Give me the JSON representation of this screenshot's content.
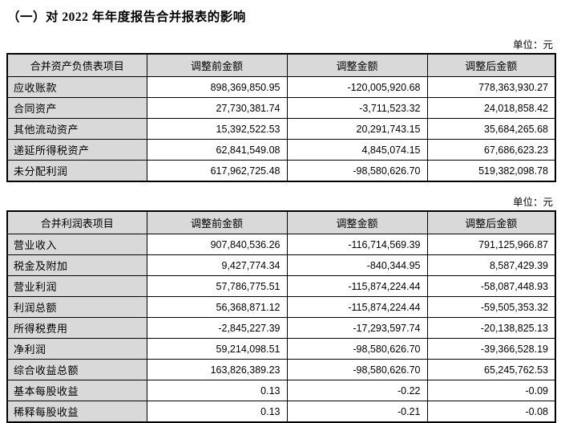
{
  "page": {
    "title": "（一）对 2022 年年度报告合并报表的影响"
  },
  "tables": [
    {
      "unit_label": "单位：元",
      "headers": [
        "合并资产负债表项目",
        "调整前金额",
        "调整金额",
        "调整后金额"
      ],
      "rows": [
        [
          "应收账款",
          "898,369,850.95",
          "-120,005,920.68",
          "778,363,930.27"
        ],
        [
          "合同资产",
          "27,730,381.74",
          "-3,711,523.32",
          "24,018,858.42"
        ],
        [
          "其他流动资产",
          "15,392,522.53",
          "20,291,743.15",
          "35,684,265.68"
        ],
        [
          "递延所得税资产",
          "62,841,549.08",
          "4,845,074.15",
          "67,686,623.23"
        ],
        [
          "未分配利润",
          "617,962,725.48",
          "-98,580,626.70",
          "519,382,098.78"
        ]
      ]
    },
    {
      "unit_label": "单位：元",
      "headers": [
        "合并利润表项目",
        "调整前金额",
        "调整金额",
        "调整后金额"
      ],
      "rows": [
        [
          "营业收入",
          "907,840,536.26",
          "-116,714,569.39",
          "791,125,966.87"
        ],
        [
          "税金及附加",
          "9,427,774.34",
          "-840,344.95",
          "8,587,429.39"
        ],
        [
          "营业利润",
          "57,786,775.51",
          "-115,874,224.44",
          "-58,087,448.93"
        ],
        [
          "利润总额",
          "56,368,871.12",
          "-115,874,224.44",
          "-59,505,353.32"
        ],
        [
          "所得税费用",
          "-2,845,227.39",
          "-17,293,597.74",
          "-20,138,825.13"
        ],
        [
          "净利润",
          "59,214,098.51",
          "-98,580,626.70",
          "-39,366,528.19"
        ],
        [
          "综合收益总额",
          "163,826,389.23",
          "-98,580,626.70",
          "65,245,762.53"
        ],
        [
          "基本每股收益",
          "0.13",
          "-0.22",
          "-0.09"
        ],
        [
          "稀释每股收益",
          "0.13",
          "-0.21",
          "-0.08"
        ]
      ]
    }
  ],
  "colors": {
    "header_bg": "#d9d9d9",
    "border": "#000000",
    "text": "#000000",
    "page_bg": "#ffffff"
  }
}
